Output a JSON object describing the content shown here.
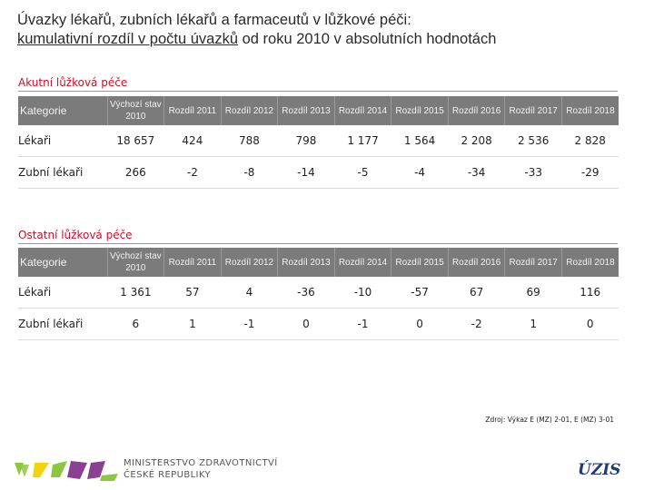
{
  "title": {
    "line1": "Úvazky lékařů, zubních lékařů a farmaceutů v lůžkové péči:",
    "line2_underlined": "kumulativní rozdíl v počtu úvazků",
    "line2_rest": " od roku 2010 v absolutních hodnotách"
  },
  "sections": [
    {
      "name": "Akutní lůžková péče",
      "headers": [
        "Kategorie",
        "Výchozí stav 2010",
        "Rozdíl 2011",
        "Rozdíl 2012",
        "Rozdíl 2013",
        "Rozdíl 2014",
        "Rozdíl 2015",
        "Rozdíl 2016",
        "Rozdíl 2017",
        "Rozdíl 2018"
      ],
      "rows": [
        [
          "Lékaři",
          "18 657",
          "424",
          "788",
          "798",
          "1 177",
          "1 564",
          "2 208",
          "2 536",
          "2 828"
        ],
        [
          "Zubní lékaři",
          "266",
          "-2",
          "-8",
          "-14",
          "-5",
          "-4",
          "-34",
          "-33",
          "-29"
        ]
      ]
    },
    {
      "name": "Ostatní lůžková péče",
      "headers": [
        "Kategorie",
        "Výchozí stav 2010",
        "Rozdíl 2011",
        "Rozdíl 2012",
        "Rozdíl 2013",
        "Rozdíl 2014",
        "Rozdíl 2015",
        "Rozdíl 2016",
        "Rozdíl 2017",
        "Rozdíl 2018"
      ],
      "rows": [
        [
          "Lékaři",
          "1 361",
          "57",
          "4",
          "-36",
          "-10",
          "-57",
          "67",
          "69",
          "116"
        ],
        [
          "Zubní lékaři",
          "6",
          "1",
          "-1",
          "0",
          "-1",
          "0",
          "-2",
          "1",
          "0"
        ]
      ]
    }
  ],
  "source": "Zdroj: Výkaz E (MZ) 2-01, E (MZ) 3-01",
  "footer": {
    "ministry_line1": "MINISTERSTVO ZDRAVOTNICTVÍ",
    "ministry_line2": "ČESKÉ REPUBLIKY",
    "uzis": "ÚZIS"
  },
  "colors": {
    "header_bg": "#7b7b7b",
    "section_title": "#c8102e",
    "logo_green": "#8dc63f",
    "logo_yellow": "#f5d30a",
    "logo_purple": "#8a3f93",
    "uzis_blue": "#1f3b7a"
  }
}
